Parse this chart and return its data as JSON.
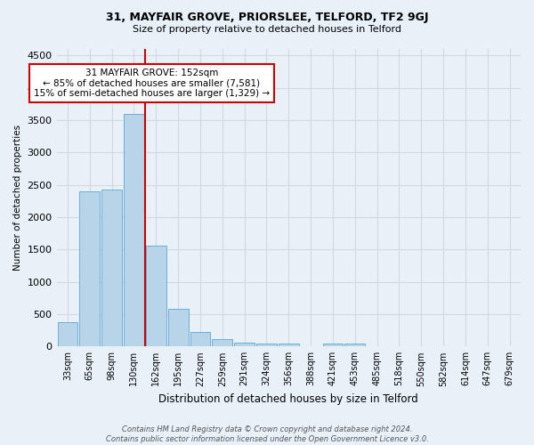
{
  "title1": "31, MAYFAIR GROVE, PRIORSLEE, TELFORD, TF2 9GJ",
  "title2": "Size of property relative to detached houses in Telford",
  "xlabel": "Distribution of detached houses by size in Telford",
  "ylabel": "Number of detached properties",
  "categories": [
    "33sqm",
    "65sqm",
    "98sqm",
    "130sqm",
    "162sqm",
    "195sqm",
    "227sqm",
    "259sqm",
    "291sqm",
    "324sqm",
    "356sqm",
    "388sqm",
    "421sqm",
    "453sqm",
    "485sqm",
    "518sqm",
    "550sqm",
    "582sqm",
    "614sqm",
    "647sqm",
    "679sqm"
  ],
  "values": [
    370,
    2400,
    2420,
    3600,
    1560,
    580,
    230,
    110,
    60,
    40,
    40,
    0,
    50,
    40,
    0,
    0,
    0,
    0,
    0,
    0,
    0
  ],
  "bar_color": "#b8d4e8",
  "bar_edge_color": "#6aaed6",
  "red_line_color": "#cc0000",
  "annotation_text": "31 MAYFAIR GROVE: 152sqm\n← 85% of detached houses are smaller (7,581)\n15% of semi-detached houses are larger (1,329) →",
  "annotation_box_color": "#ffffff",
  "annotation_box_edge_color": "#cc0000",
  "ylim": [
    0,
    4600
  ],
  "yticks": [
    0,
    500,
    1000,
    1500,
    2000,
    2500,
    3000,
    3500,
    4000,
    4500
  ],
  "bg_color": "#e8f0f8",
  "grid_color": "#d0d8e0",
  "footnote": "Contains HM Land Registry data © Crown copyright and database right 2024.\nContains public sector information licensed under the Open Government Licence v3.0."
}
